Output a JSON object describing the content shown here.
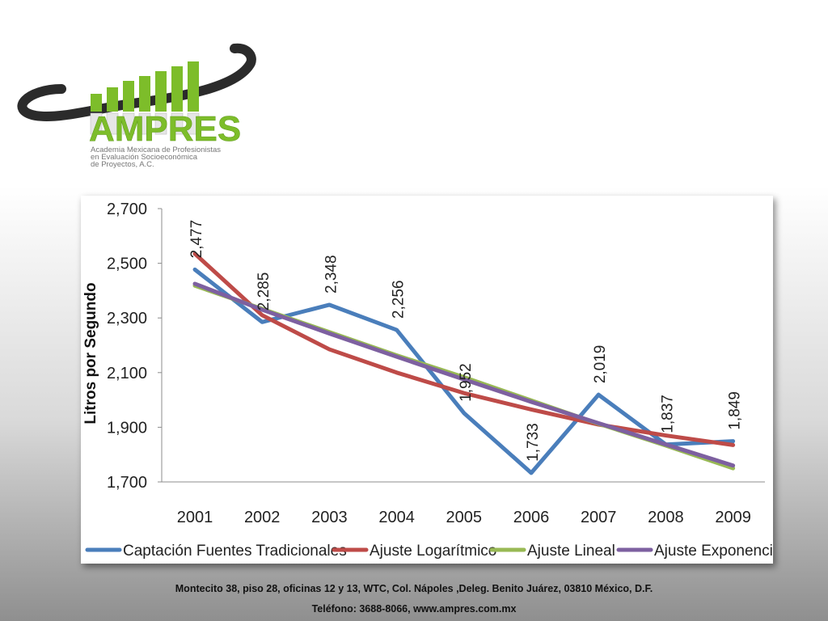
{
  "logo": {
    "name": "AMPRES",
    "subtitle_lines": [
      "Academia Mexicana de Profesionistas",
      "en Evaluación Socioeconómica",
      "de Proyectos, A.C."
    ],
    "colors": {
      "green": "#7dbd2a",
      "dark_ring": "#2b2b2b"
    }
  },
  "chart_data": {
    "type": "line",
    "title": "",
    "xlabel": "",
    "ylabel": "Litros por Segundo",
    "categories": [
      "2001",
      "2002",
      "2003",
      "2004",
      "2005",
      "2006",
      "2007",
      "2008",
      "2009"
    ],
    "ylim": [
      1700,
      2700
    ],
    "yticks": [
      1700,
      1900,
      2100,
      2300,
      2500,
      2700
    ],
    "ytick_labels": [
      "1,700",
      "1,900",
      "2,100",
      "2,300",
      "2,500",
      "2,700"
    ],
    "grid": false,
    "legend_position": "bottom",
    "series": [
      {
        "name": "Captación Fuentes Tradicionales",
        "color": "#4a7ebb",
        "values": [
          2477,
          2285,
          2348,
          2256,
          1952,
          1733,
          2019,
          1837,
          1849
        ],
        "data_labels": [
          "2,477",
          "2,285",
          "2,348",
          "2,256",
          "1,952",
          "1,733",
          "2,019",
          "1,837",
          "1,849"
        ]
      },
      {
        "name": "Ajuste Logarítmico",
        "color": "#be4b48",
        "values": [
          2535,
          2310,
          2185,
          2100,
          2025,
          1965,
          1910,
          1870,
          1835
        ]
      },
      {
        "name": "Ajuste Lineal",
        "color": "#98b954",
        "values": [
          2418,
          2333,
          2248,
          2163,
          2083,
          1998,
          1913,
          1833,
          1750
        ]
      },
      {
        "name": "Ajuste Exponencial",
        "color": "#7d60a0",
        "values": [
          2425,
          2330,
          2243,
          2158,
          2075,
          1993,
          1915,
          1837,
          1760
        ]
      }
    ]
  },
  "footer": {
    "address": "Montecito 38, piso 28, oficinas 12 y 13, WTC, Col. Nápoles ,Deleg. Benito Juárez, 03810 México, D.F.",
    "contact": "Teléfono: 3688-8066, www.ampres.com.mx"
  }
}
